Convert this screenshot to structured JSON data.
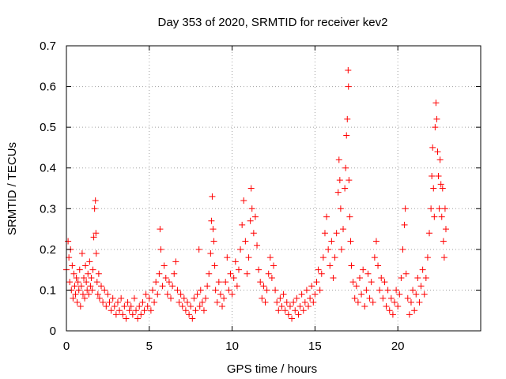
{
  "chart_data": {
    "type": "scatter",
    "title": "Day 353 of 2020, SRMTID for receiver kev2",
    "xlabel": "GPS time / hours",
    "ylabel": "SRMTID / TECUs",
    "xlim": [
      0,
      25
    ],
    "ylim": [
      0,
      0.7
    ],
    "xticks": [
      0,
      5,
      10,
      15,
      20
    ],
    "xtick_labels": [
      "0",
      "5",
      "10",
      "15",
      "20"
    ],
    "yticks": [
      0,
      0.1,
      0.2,
      0.3,
      0.4,
      0.5,
      0.6,
      0.7
    ],
    "ytick_labels": [
      "0",
      "0.1",
      "0.2",
      "0.3",
      "0.4",
      "0.5",
      "0.6",
      "0.7"
    ],
    "grid": true,
    "marker": "+",
    "color": "#ff0000",
    "series": [
      {
        "name": "kev2",
        "points": [
          [
            0.0,
            0.15
          ],
          [
            0.1,
            0.22
          ],
          [
            0.15,
            0.18
          ],
          [
            0.2,
            0.12
          ],
          [
            0.25,
            0.2
          ],
          [
            0.3,
            0.1
          ],
          [
            0.35,
            0.16
          ],
          [
            0.4,
            0.08
          ],
          [
            0.45,
            0.14
          ],
          [
            0.5,
            0.11
          ],
          [
            0.55,
            0.09
          ],
          [
            0.6,
            0.13
          ],
          [
            0.65,
            0.07
          ],
          [
            0.7,
            0.12
          ],
          [
            0.75,
            0.1
          ],
          [
            0.8,
            0.15
          ],
          [
            0.85,
            0.06
          ],
          [
            0.9,
            0.11
          ],
          [
            0.95,
            0.19
          ],
          [
            1.0,
            0.09
          ],
          [
            1.05,
            0.13
          ],
          [
            1.1,
            0.08
          ],
          [
            1.15,
            0.16
          ],
          [
            1.2,
            0.12
          ],
          [
            1.25,
            0.1
          ],
          [
            1.3,
            0.14
          ],
          [
            1.35,
            0.09
          ],
          [
            1.4,
            0.17
          ],
          [
            1.45,
            0.11
          ],
          [
            1.5,
            0.13
          ],
          [
            1.55,
            0.1
          ],
          [
            1.6,
            0.15
          ],
          [
            1.65,
            0.23
          ],
          [
            1.7,
            0.3
          ],
          [
            1.75,
            0.32
          ],
          [
            1.78,
            0.24
          ],
          [
            1.8,
            0.19
          ],
          [
            1.85,
            0.12
          ],
          [
            1.9,
            0.09
          ],
          [
            1.95,
            0.14
          ],
          [
            2.0,
            0.08
          ],
          [
            2.1,
            0.11
          ],
          [
            2.2,
            0.07
          ],
          [
            2.3,
            0.1
          ],
          [
            2.4,
            0.06
          ],
          [
            2.5,
            0.09
          ],
          [
            2.6,
            0.07
          ],
          [
            2.7,
            0.05
          ],
          [
            2.8,
            0.08
          ],
          [
            2.9,
            0.06
          ],
          [
            3.0,
            0.04
          ],
          [
            3.1,
            0.07
          ],
          [
            3.2,
            0.05
          ],
          [
            3.3,
            0.08
          ],
          [
            3.4,
            0.04
          ],
          [
            3.5,
            0.06
          ],
          [
            3.6,
            0.03
          ],
          [
            3.7,
            0.07
          ],
          [
            3.8,
            0.05
          ],
          [
            3.9,
            0.06
          ],
          [
            4.0,
            0.04
          ],
          [
            4.1,
            0.08
          ],
          [
            4.2,
            0.05
          ],
          [
            4.3,
            0.03
          ],
          [
            4.4,
            0.06
          ],
          [
            4.5,
            0.04
          ],
          [
            4.6,
            0.07
          ],
          [
            4.7,
            0.05
          ],
          [
            4.8,
            0.09
          ],
          [
            4.9,
            0.06
          ],
          [
            5.0,
            0.08
          ],
          [
            5.1,
            0.05
          ],
          [
            5.2,
            0.1
          ],
          [
            5.3,
            0.07
          ],
          [
            5.4,
            0.12
          ],
          [
            5.5,
            0.09
          ],
          [
            5.6,
            0.14
          ],
          [
            5.65,
            0.25
          ],
          [
            5.7,
            0.2
          ],
          [
            5.8,
            0.11
          ],
          [
            5.9,
            0.16
          ],
          [
            6.0,
            0.13
          ],
          [
            6.1,
            0.09
          ],
          [
            6.2,
            0.12
          ],
          [
            6.3,
            0.08
          ],
          [
            6.4,
            0.11
          ],
          [
            6.5,
            0.14
          ],
          [
            6.6,
            0.17
          ],
          [
            6.7,
            0.1
          ],
          [
            6.8,
            0.07
          ],
          [
            6.9,
            0.09
          ],
          [
            7.0,
            0.06
          ],
          [
            7.1,
            0.08
          ],
          [
            7.2,
            0.05
          ],
          [
            7.3,
            0.07
          ],
          [
            7.4,
            0.04
          ],
          [
            7.5,
            0.06
          ],
          [
            7.6,
            0.03
          ],
          [
            7.7,
            0.08
          ],
          [
            7.8,
            0.05
          ],
          [
            7.9,
            0.09
          ],
          [
            8.0,
            0.2
          ],
          [
            8.05,
            0.06
          ],
          [
            8.1,
            0.1
          ],
          [
            8.2,
            0.07
          ],
          [
            8.3,
            0.05
          ],
          [
            8.4,
            0.08
          ],
          [
            8.5,
            0.11
          ],
          [
            8.6,
            0.14
          ],
          [
            8.7,
            0.19
          ],
          [
            8.75,
            0.27
          ],
          [
            8.8,
            0.33
          ],
          [
            8.85,
            0.25
          ],
          [
            8.9,
            0.22
          ],
          [
            8.95,
            0.16
          ],
          [
            9.0,
            0.1
          ],
          [
            9.1,
            0.07
          ],
          [
            9.2,
            0.12
          ],
          [
            9.3,
            0.09
          ],
          [
            9.4,
            0.06
          ],
          [
            9.5,
            0.08
          ],
          [
            9.6,
            0.12
          ],
          [
            9.7,
            0.18
          ],
          [
            9.8,
            0.1
          ],
          [
            9.9,
            0.14
          ],
          [
            10.0,
            0.09
          ],
          [
            10.1,
            0.13
          ],
          [
            10.2,
            0.17
          ],
          [
            10.3,
            0.11
          ],
          [
            10.4,
            0.15
          ],
          [
            10.5,
            0.2
          ],
          [
            10.6,
            0.26
          ],
          [
            10.7,
            0.32
          ],
          [
            10.8,
            0.22
          ],
          [
            10.9,
            0.14
          ],
          [
            11.0,
            0.18
          ],
          [
            11.1,
            0.27
          ],
          [
            11.15,
            0.35
          ],
          [
            11.2,
            0.3
          ],
          [
            11.3,
            0.24
          ],
          [
            11.4,
            0.28
          ],
          [
            11.5,
            0.21
          ],
          [
            11.6,
            0.15
          ],
          [
            11.7,
            0.12
          ],
          [
            11.8,
            0.08
          ],
          [
            11.9,
            0.11
          ],
          [
            12.0,
            0.07
          ],
          [
            12.1,
            0.1
          ],
          [
            12.2,
            0.14
          ],
          [
            12.3,
            0.18
          ],
          [
            12.4,
            0.13
          ],
          [
            12.5,
            0.16
          ],
          [
            12.6,
            0.1
          ],
          [
            12.7,
            0.07
          ],
          [
            12.8,
            0.05
          ],
          [
            12.9,
            0.08
          ],
          [
            13.0,
            0.06
          ],
          [
            13.1,
            0.09
          ],
          [
            13.2,
            0.05
          ],
          [
            13.3,
            0.07
          ],
          [
            13.4,
            0.04
          ],
          [
            13.5,
            0.06
          ],
          [
            13.6,
            0.03
          ],
          [
            13.7,
            0.07
          ],
          [
            13.8,
            0.05
          ],
          [
            13.9,
            0.08
          ],
          [
            14.0,
            0.04
          ],
          [
            14.1,
            0.06
          ],
          [
            14.2,
            0.09
          ],
          [
            14.3,
            0.05
          ],
          [
            14.4,
            0.07
          ],
          [
            14.5,
            0.1
          ],
          [
            14.6,
            0.06
          ],
          [
            14.7,
            0.08
          ],
          [
            14.8,
            0.11
          ],
          [
            14.9,
            0.07
          ],
          [
            15.0,
            0.09
          ],
          [
            15.1,
            0.12
          ],
          [
            15.2,
            0.15
          ],
          [
            15.3,
            0.1
          ],
          [
            15.4,
            0.14
          ],
          [
            15.5,
            0.18
          ],
          [
            15.6,
            0.24
          ],
          [
            15.7,
            0.28
          ],
          [
            15.8,
            0.2
          ],
          [
            15.9,
            0.16
          ],
          [
            16.0,
            0.22
          ],
          [
            16.1,
            0.13
          ],
          [
            16.2,
            0.18
          ],
          [
            16.3,
            0.24
          ],
          [
            16.4,
            0.34
          ],
          [
            16.45,
            0.42
          ],
          [
            16.5,
            0.37
          ],
          [
            16.55,
            0.3
          ],
          [
            16.6,
            0.2
          ],
          [
            16.7,
            0.25
          ],
          [
            16.8,
            0.35
          ],
          [
            16.85,
            0.4
          ],
          [
            16.9,
            0.48
          ],
          [
            16.95,
            0.52
          ],
          [
            17.0,
            0.64
          ],
          [
            17.02,
            0.6
          ],
          [
            17.05,
            0.37
          ],
          [
            17.1,
            0.28
          ],
          [
            17.15,
            0.22
          ],
          [
            17.2,
            0.16
          ],
          [
            17.3,
            0.12
          ],
          [
            17.4,
            0.08
          ],
          [
            17.5,
            0.11
          ],
          [
            17.6,
            0.07
          ],
          [
            17.7,
            0.13
          ],
          [
            17.8,
            0.09
          ],
          [
            17.9,
            0.15
          ],
          [
            18.0,
            0.06
          ],
          [
            18.1,
            0.1
          ],
          [
            18.2,
            0.14
          ],
          [
            18.3,
            0.08
          ],
          [
            18.4,
            0.12
          ],
          [
            18.5,
            0.07
          ],
          [
            18.6,
            0.18
          ],
          [
            18.7,
            0.22
          ],
          [
            18.8,
            0.16
          ],
          [
            18.9,
            0.1
          ],
          [
            19.0,
            0.13
          ],
          [
            19.1,
            0.08
          ],
          [
            19.2,
            0.12
          ],
          [
            19.3,
            0.06
          ],
          [
            19.4,
            0.1
          ],
          [
            19.5,
            0.05
          ],
          [
            19.6,
            0.08
          ],
          [
            19.7,
            0.04
          ],
          [
            19.8,
            0.07
          ],
          [
            19.9,
            0.1
          ],
          [
            20.0,
            0.06
          ],
          [
            20.1,
            0.09
          ],
          [
            20.2,
            0.13
          ],
          [
            20.3,
            0.2
          ],
          [
            20.4,
            0.26
          ],
          [
            20.45,
            0.3
          ],
          [
            20.5,
            0.14
          ],
          [
            20.6,
            0.08
          ],
          [
            20.7,
            0.04
          ],
          [
            20.8,
            0.07
          ],
          [
            20.9,
            0.1
          ],
          [
            21.0,
            0.05
          ],
          [
            21.1,
            0.09
          ],
          [
            21.2,
            0.13
          ],
          [
            21.3,
            0.07
          ],
          [
            21.4,
            0.11
          ],
          [
            21.5,
            0.15
          ],
          [
            21.6,
            0.09
          ],
          [
            21.7,
            0.13
          ],
          [
            21.8,
            0.18
          ],
          [
            21.9,
            0.24
          ],
          [
            22.0,
            0.3
          ],
          [
            22.05,
            0.38
          ],
          [
            22.1,
            0.45
          ],
          [
            22.15,
            0.35
          ],
          [
            22.2,
            0.28
          ],
          [
            22.25,
            0.5
          ],
          [
            22.3,
            0.56
          ],
          [
            22.35,
            0.52
          ],
          [
            22.4,
            0.44
          ],
          [
            22.45,
            0.38
          ],
          [
            22.5,
            0.3
          ],
          [
            22.55,
            0.42
          ],
          [
            22.6,
            0.36
          ],
          [
            22.65,
            0.28
          ],
          [
            22.7,
            0.35
          ],
          [
            22.75,
            0.22
          ],
          [
            22.8,
            0.18
          ],
          [
            22.85,
            0.3
          ],
          [
            22.9,
            0.25
          ]
        ]
      }
    ]
  }
}
